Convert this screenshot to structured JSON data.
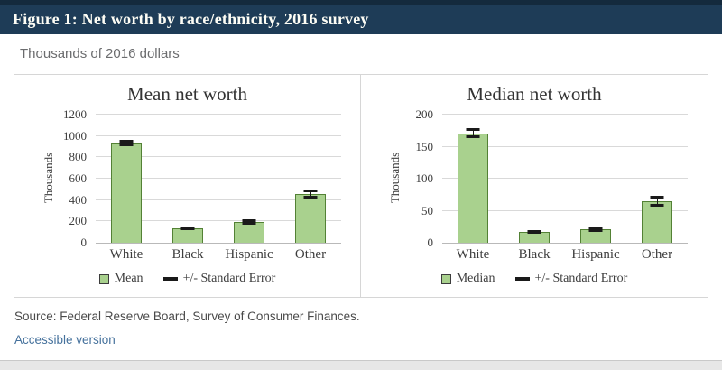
{
  "header": {
    "title": "Figure 1: Net worth by race/ethnicity, 2016 survey"
  },
  "subtitle": "Thousands of 2016 dollars",
  "footer": {
    "source": "Source: Federal Reserve Board, Survey of Consumer Finances.",
    "accessible_link": "Accessible version"
  },
  "colors": {
    "header_bg": "#1e3c57",
    "header_border": "#142a3d",
    "bar_fill": "#a9d18e",
    "bar_border": "#538135",
    "error_color": "#1a1a1a",
    "grid": "#d9d9d9",
    "panel_border": "#d6d6d6",
    "link": "#45719c"
  },
  "chart_data": [
    {
      "type": "bar",
      "title": "Mean net worth",
      "ylabel": "Thousands",
      "categories": [
        "White",
        "Black",
        "Hispanic",
        "Other"
      ],
      "values": [
        933.7,
        138.2,
        191.2,
        457.8
      ],
      "standard_errors": [
        27,
        18,
        25,
        40
      ],
      "ylim": [
        0,
        1200
      ],
      "yticks": [
        0,
        200,
        400,
        600,
        800,
        1000,
        1200
      ],
      "grid": true,
      "legend": [
        "Mean",
        "+/- Standard Error"
      ],
      "legend_position": "bottom"
    },
    {
      "type": "bar",
      "title": "Median net worth",
      "ylabel": "Thousands",
      "categories": [
        "White",
        "Black",
        "Hispanic",
        "Other"
      ],
      "values": [
        171.0,
        16.6,
        20.7,
        64.8
      ],
      "standard_errors": [
        7.5,
        2.5,
        3.5,
        8
      ],
      "ylim": [
        0,
        200
      ],
      "yticks": [
        0,
        50,
        100,
        150,
        200
      ],
      "grid": true,
      "legend": [
        "Median",
        "+/- Standard Error"
      ],
      "legend_position": "bottom"
    }
  ]
}
